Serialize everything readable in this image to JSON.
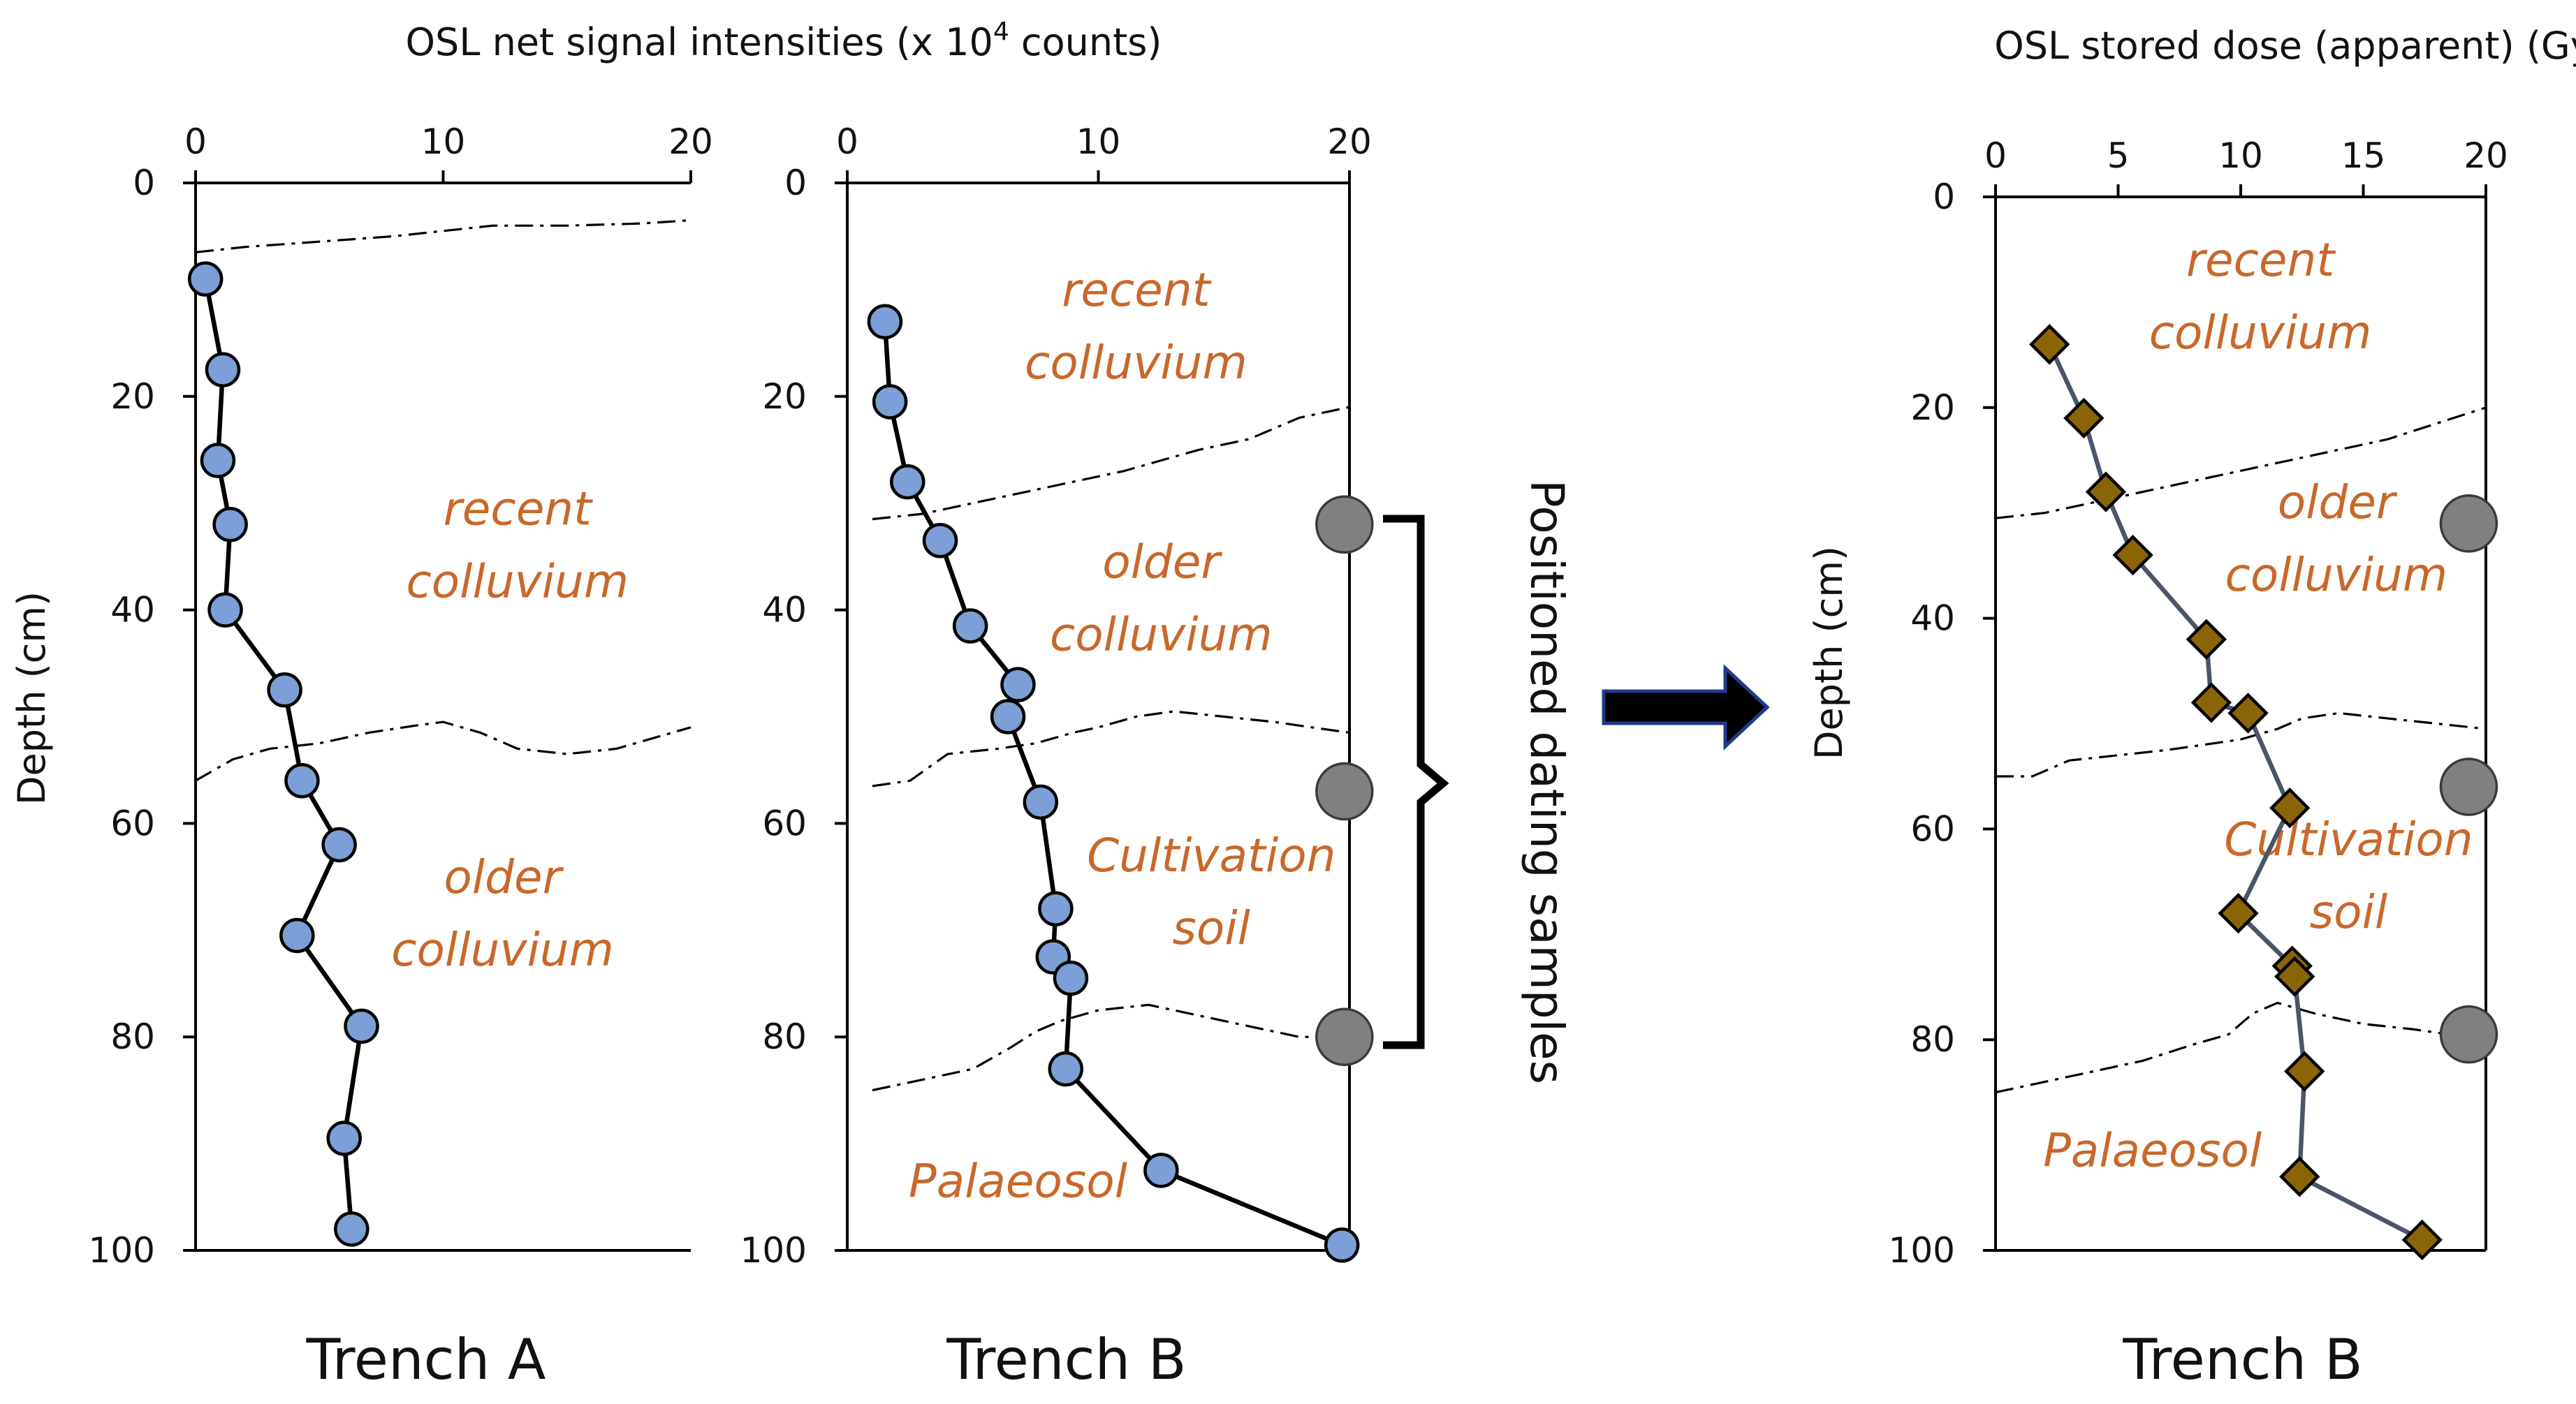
{
  "chart_data": [
    {
      "id": "trenchA",
      "type": "line",
      "panel_title": "Trench A",
      "xlabel": "OSL net signal intensities (x 10",
      "xlabel_superscript": "4",
      "xlabel_suffix": " counts)",
      "ylabel": "Depth (cm)",
      "xlim": [
        0,
        20
      ],
      "ylim": [
        0,
        100
      ],
      "xticks": [
        0,
        10,
        20
      ],
      "yticks": [
        0,
        20,
        40,
        60,
        80,
        100
      ],
      "marker": "circle",
      "series": [
        {
          "name": "OSL net signal",
          "x": [
            0.4,
            1.1,
            0.9,
            1.4,
            1.2,
            3.6,
            4.3,
            5.8,
            4.1,
            6.7,
            6.0,
            6.3
          ],
          "depth": [
            9,
            17.5,
            26,
            32,
            40,
            47.5,
            56,
            62,
            70.5,
            79,
            89.5,
            98
          ]
        }
      ],
      "boundaries": [
        {
          "x": [
            0,
            2,
            5,
            8,
            10,
            12,
            15,
            18,
            20
          ],
          "depth": [
            6.5,
            6,
            5.5,
            5,
            4.5,
            4,
            4,
            3.8,
            3.5
          ]
        },
        {
          "x": [
            0,
            1.5,
            3,
            5,
            7,
            9,
            10,
            11.5,
            13,
            15,
            17,
            18.5,
            20
          ],
          "depth": [
            56,
            54,
            53,
            52.5,
            51.5,
            50.8,
            50.5,
            51.5,
            53,
            53.5,
            53,
            52,
            51
          ]
        }
      ],
      "zone_labels": [
        {
          "lines": [
            "recent",
            "colluvium"
          ],
          "x": 13,
          "depth": 32
        },
        {
          "lines": [
            "older",
            "colluvium"
          ],
          "x": 12.4,
          "depth": 66.5
        }
      ]
    },
    {
      "id": "trenchB1",
      "type": "line",
      "panel_title": "Trench B",
      "xlim": [
        0,
        20
      ],
      "ylim": [
        0,
        100
      ],
      "xticks": [
        0,
        10,
        20
      ],
      "yticks": [
        0,
        20,
        40,
        60,
        80,
        100
      ],
      "marker": "circle",
      "series": [
        {
          "name": "OSL net signal",
          "x": [
            1.5,
            1.7,
            2.4,
            3.7,
            4.9,
            6.8,
            6.4,
            7.7,
            8.3,
            8.2,
            8.9,
            8.7,
            12.5,
            19.7
          ],
          "depth": [
            13,
            20.5,
            28,
            33.5,
            41.5,
            47,
            50,
            58,
            68,
            72.5,
            74.5,
            83,
            92.5,
            99.5
          ]
        }
      ],
      "boundaries": [
        {
          "x": [
            1,
            3,
            5,
            7,
            9,
            11,
            12.5,
            14,
            16,
            18,
            20
          ],
          "depth": [
            31.5,
            31,
            30,
            29,
            28,
            27,
            26,
            25,
            24,
            22,
            21
          ]
        },
        {
          "x": [
            1,
            2.5,
            4,
            6,
            7.5,
            9,
            10,
            11.5,
            13,
            15,
            17,
            18.5,
            20
          ],
          "depth": [
            56.5,
            56,
            53.5,
            53,
            52.5,
            51.5,
            51,
            50,
            49.5,
            50,
            50.5,
            51,
            51.5
          ]
        },
        {
          "x": [
            1,
            3,
            5,
            6.5,
            7.5,
            8.5,
            10,
            12,
            14,
            16,
            18,
            20
          ],
          "depth": [
            85,
            84,
            83,
            81,
            79.5,
            78.5,
            77.5,
            77,
            78,
            79,
            80,
            80
          ]
        }
      ],
      "zone_labels": [
        {
          "lines": [
            "recent",
            "colluvium"
          ],
          "x": 11.5,
          "depth": 11.5
        },
        {
          "lines": [
            "older",
            "colluvium"
          ],
          "x": 12.5,
          "depth": 37
        },
        {
          "lines": [
            "Cultivation",
            "soil"
          ],
          "x": 14.5,
          "depth": 64.5
        },
        {
          "lines": [
            "Palaeosol"
          ],
          "x": 6.8,
          "depth": 95
        }
      ],
      "sample_markers": {
        "x": 19.8,
        "depth": [
          32,
          57,
          80
        ]
      },
      "bracket_label": "Positioned dating samples"
    },
    {
      "id": "trenchB2",
      "type": "line",
      "panel_title": "Trench B",
      "xlabel": "OSL stored dose (apparent) (Gy)",
      "ylabel": "Depth (cm)",
      "xlim": [
        0,
        20
      ],
      "ylim": [
        0,
        100
      ],
      "xticks": [
        0,
        5,
        10,
        15,
        20
      ],
      "yticks": [
        0,
        20,
        40,
        60,
        80,
        100
      ],
      "marker": "diamond",
      "series": [
        {
          "name": "OSL stored dose",
          "x": [
            2.2,
            3.6,
            4.5,
            5.6,
            8.6,
            8.8,
            10.3,
            12.0,
            9.9,
            12.1,
            12.2,
            12.6,
            12.4,
            17.4
          ],
          "depth": [
            14,
            21,
            28,
            34,
            42,
            48,
            49,
            58,
            68,
            73,
            74,
            83,
            93,
            99
          ]
        }
      ],
      "boundaries": [
        {
          "x": [
            0,
            2,
            4,
            6,
            8,
            10,
            12,
            14,
            16,
            18,
            20
          ],
          "depth": [
            30.5,
            30,
            29,
            28,
            27,
            26,
            25,
            24,
            23,
            21.5,
            20
          ]
        },
        {
          "x": [
            0,
            1.5,
            3,
            5,
            7,
            8.5,
            10,
            11.5,
            12.5,
            14,
            16,
            18,
            20
          ],
          "depth": [
            55,
            55,
            53.5,
            53,
            52.5,
            52,
            51.5,
            50.5,
            49.5,
            49,
            49.5,
            50,
            50.5
          ]
        },
        {
          "x": [
            0,
            2,
            4,
            6,
            8,
            9.5,
            10.5,
            11.5,
            13,
            15,
            17,
            18.5,
            20
          ],
          "depth": [
            85,
            84,
            83,
            82,
            80.5,
            79.5,
            77.5,
            76.5,
            77.5,
            78.5,
            79,
            79.5,
            80
          ]
        }
      ],
      "zone_labels": [
        {
          "lines": [
            "recent",
            "colluvium"
          ],
          "x": 10.8,
          "depth": 7.5
        },
        {
          "lines": [
            "older",
            "colluvium"
          ],
          "x": 13.9,
          "depth": 30.5
        },
        {
          "lines": [
            "Cultivation",
            "soil"
          ],
          "x": 14.4,
          "depth": 62.5
        },
        {
          "lines": [
            "Palaeosol"
          ],
          "x": 6.4,
          "depth": 92
        }
      ],
      "sample_markers": {
        "x": 19.3,
        "depth": [
          31,
          56,
          79.5
        ]
      }
    }
  ]
}
